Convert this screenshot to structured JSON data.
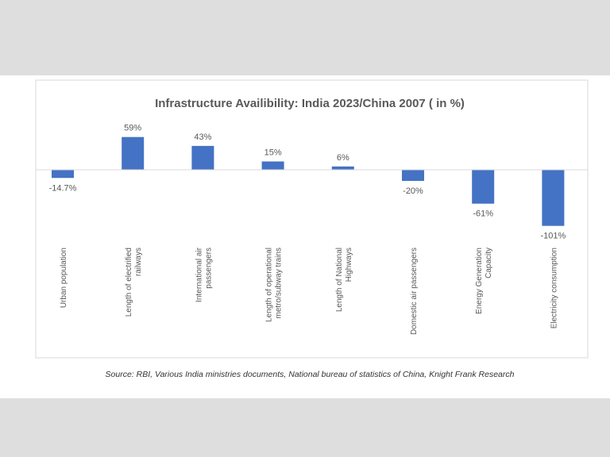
{
  "chart_data": {
    "type": "bar",
    "title": "Infrastructure Availibility: India 2023/China 2007 ( in %)",
    "categories": [
      [
        "Urban population"
      ],
      [
        "Length of electrified",
        "railways"
      ],
      [
        "International air",
        "passengers"
      ],
      [
        "Length of operational",
        "metro/subway trains"
      ],
      [
        "Length of National",
        "Highways"
      ],
      [
        "Domestic air passengers"
      ],
      [
        "Energy Generation",
        "Capacity"
      ],
      [
        "Electricity consumption"
      ]
    ],
    "values": [
      -14.7,
      59,
      43,
      15,
      6,
      -20,
      -61,
      -101
    ],
    "data_labels": [
      "-14.7%",
      "59%",
      "43%",
      "15%",
      "6%",
      "-20%",
      "-61%",
      "-101%"
    ],
    "bar_color": "#4472c4",
    "grid": false,
    "legend": "none",
    "ylim": [
      -101,
      59
    ]
  },
  "source": "Source: RBI, Various India ministries documents, National bureau of statistics of China, Knight Frank Research"
}
